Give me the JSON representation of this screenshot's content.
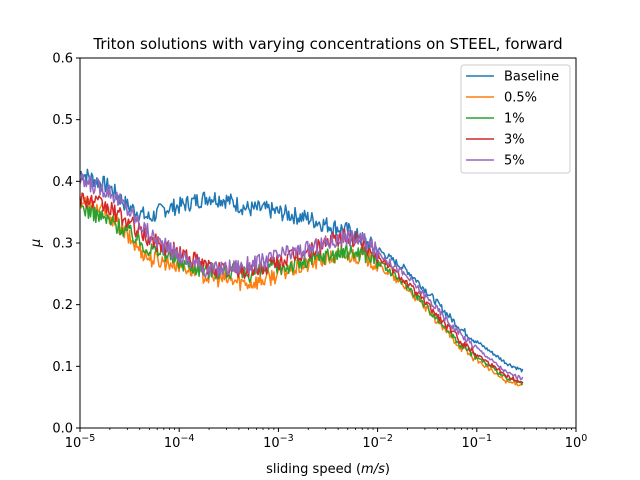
{
  "chart_data": {
    "type": "line",
    "title": "Triton solutions with varying concentrations on STEEL, forward",
    "xlabel_main": "sliding speed (",
    "xlabel_unit": "m/s",
    "xlabel_end": ")",
    "ylabel": "μ",
    "xscale": "log",
    "xlim": [
      1e-05,
      1
    ],
    "ylim": [
      0,
      0.6
    ],
    "xticks": [
      {
        "base": "10",
        "exp": "−5"
      },
      {
        "base": "10",
        "exp": "−4"
      },
      {
        "base": "10",
        "exp": "−3"
      },
      {
        "base": "10",
        "exp": "−2"
      },
      {
        "base": "10",
        "exp": "−1"
      },
      {
        "base": "10",
        "exp": "0"
      }
    ],
    "yticks": [
      "0.0",
      "0.1",
      "0.2",
      "0.3",
      "0.4",
      "0.5",
      "0.6"
    ],
    "legend_position": "top-right",
    "grid": false,
    "series": [
      {
        "name": "Baseline",
        "color": "#1f77b4",
        "x": [
          1e-05,
          2e-05,
          3e-05,
          5e-05,
          7e-05,
          0.0001,
          0.0002,
          0.0003,
          0.0005,
          0.0007,
          0.001,
          0.002,
          0.003,
          0.005,
          0.007,
          0.01,
          0.02,
          0.03,
          0.05,
          0.07,
          0.1,
          0.2,
          0.29
        ],
        "y": [
          0.415,
          0.39,
          0.36,
          0.34,
          0.355,
          0.36,
          0.375,
          0.37,
          0.355,
          0.355,
          0.35,
          0.34,
          0.33,
          0.32,
          0.305,
          0.29,
          0.255,
          0.225,
          0.185,
          0.16,
          0.14,
          0.105,
          0.093
        ]
      },
      {
        "name": "0.5%",
        "color": "#ff7f0e",
        "x": [
          1e-05,
          2e-05,
          3e-05,
          5e-05,
          7e-05,
          0.0001,
          0.0002,
          0.0003,
          0.0005,
          0.0007,
          0.001,
          0.002,
          0.003,
          0.005,
          0.007,
          0.01,
          0.02,
          0.03,
          0.05,
          0.07,
          0.1,
          0.2,
          0.29
        ],
        "y": [
          0.37,
          0.345,
          0.31,
          0.275,
          0.27,
          0.265,
          0.245,
          0.24,
          0.235,
          0.24,
          0.25,
          0.265,
          0.275,
          0.28,
          0.28,
          0.265,
          0.225,
          0.195,
          0.155,
          0.13,
          0.11,
          0.075,
          0.07
        ]
      },
      {
        "name": "1%",
        "color": "#2ca02c",
        "x": [
          1e-05,
          2e-05,
          3e-05,
          5e-05,
          7e-05,
          0.0001,
          0.0002,
          0.0003,
          0.0005,
          0.0007,
          0.001,
          0.002,
          0.003,
          0.005,
          0.007,
          0.01,
          0.02,
          0.03,
          0.05,
          0.07,
          0.1,
          0.2,
          0.29
        ],
        "y": [
          0.36,
          0.335,
          0.32,
          0.29,
          0.285,
          0.27,
          0.255,
          0.255,
          0.25,
          0.255,
          0.26,
          0.27,
          0.28,
          0.285,
          0.285,
          0.27,
          0.23,
          0.2,
          0.16,
          0.135,
          0.115,
          0.08,
          0.072
        ]
      },
      {
        "name": "3%",
        "color": "#d62728",
        "x": [
          1e-05,
          2e-05,
          3e-05,
          5e-05,
          7e-05,
          0.0001,
          0.0002,
          0.0003,
          0.0005,
          0.0007,
          0.001,
          0.002,
          0.003,
          0.005,
          0.007,
          0.01,
          0.02,
          0.03,
          0.05,
          0.07,
          0.1,
          0.2,
          0.29
        ],
        "y": [
          0.375,
          0.355,
          0.335,
          0.305,
          0.295,
          0.285,
          0.26,
          0.255,
          0.255,
          0.26,
          0.27,
          0.285,
          0.3,
          0.31,
          0.3,
          0.28,
          0.235,
          0.205,
          0.165,
          0.14,
          0.12,
          0.085,
          0.073
        ]
      },
      {
        "name": "5%",
        "color": "#9467bd",
        "x": [
          1e-05,
          2e-05,
          3e-05,
          5e-05,
          7e-05,
          0.0001,
          0.0002,
          0.0003,
          0.0005,
          0.0007,
          0.001,
          0.002,
          0.003,
          0.005,
          0.007,
          0.01,
          0.02,
          0.03,
          0.05,
          0.07,
          0.1,
          0.2,
          0.29
        ],
        "y": [
          0.4,
          0.385,
          0.355,
          0.315,
          0.295,
          0.28,
          0.255,
          0.26,
          0.265,
          0.27,
          0.28,
          0.29,
          0.3,
          0.31,
          0.305,
          0.285,
          0.245,
          0.215,
          0.175,
          0.15,
          0.13,
          0.09,
          0.08
        ]
      }
    ]
  }
}
